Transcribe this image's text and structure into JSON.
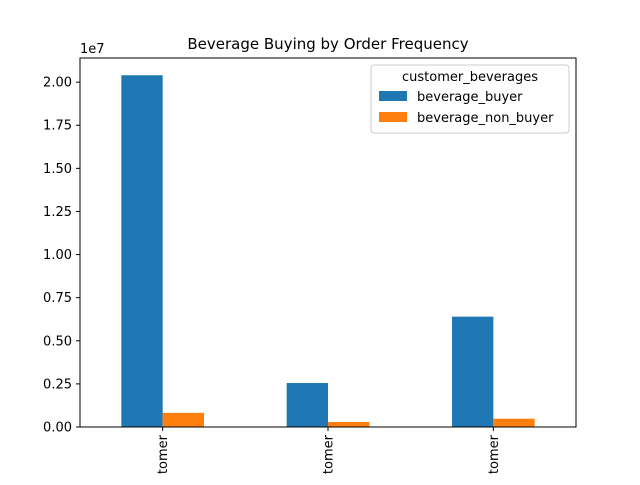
{
  "chart_data": {
    "type": "bar",
    "title": "Beverage Buying by Order Frequency",
    "xlabel": "",
    "ylabel": "",
    "categories": [
      "tomer",
      "tomer",
      "tomer"
    ],
    "series": [
      {
        "name": "beverage_buyer",
        "values": [
          20400000,
          2550000,
          6400000
        ],
        "color": "#1f77b4"
      },
      {
        "name": "beverage_non_buyer",
        "values": [
          820000,
          290000,
          480000
        ],
        "color": "#ff7f0e"
      }
    ],
    "ylim": [
      0,
      21400000
    ],
    "yticks": [
      0,
      2500000,
      5000000,
      7500000,
      10000000,
      12500000,
      15000000,
      17500000,
      20000000
    ],
    "ytick_labels": [
      "0.00",
      "0.25",
      "0.50",
      "0.75",
      "1.00",
      "1.25",
      "1.50",
      "1.75",
      "2.00"
    ],
    "y_offset_label": "1e7",
    "legend": {
      "title": "customer_beverages",
      "placement": "top-right"
    },
    "grid": false
  }
}
